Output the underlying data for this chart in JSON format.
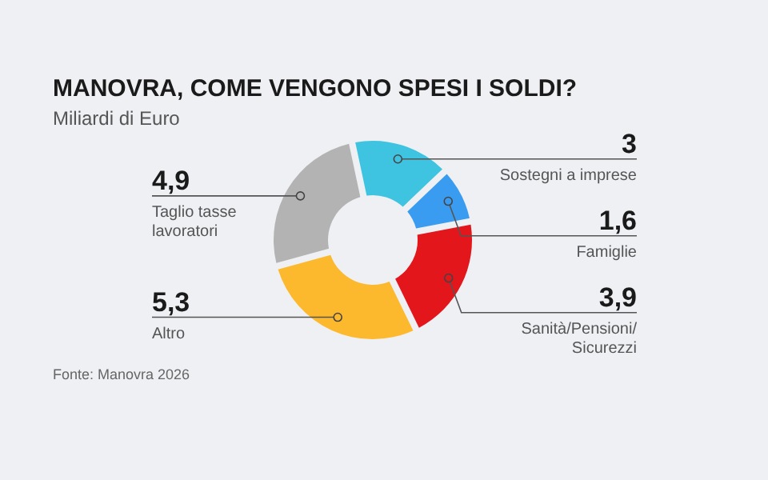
{
  "chart_data": {
    "type": "donut",
    "title": "MANOVRA, COME VENGONO SPESI I SOLDI?",
    "subtitle": "Miliardi di Euro",
    "categories": [
      "Sostegni a imprese",
      "Famiglie",
      "Sanità/Pensioni/Sicurezzi",
      "Altro",
      "Taglio tasse lavoratori"
    ],
    "values": [
      3,
      1.6,
      3.9,
      5.3,
      4.9
    ],
    "value_labels": [
      "3",
      "1,6",
      "3,9",
      "5,3",
      "4,9"
    ],
    "colors": [
      "#3ec3e0",
      "#3a9cf0",
      "#e2161b",
      "#fdb92e",
      "#b3b3b3"
    ],
    "annotations": [
      "Fonte: Manovra 2026"
    ]
  }
}
